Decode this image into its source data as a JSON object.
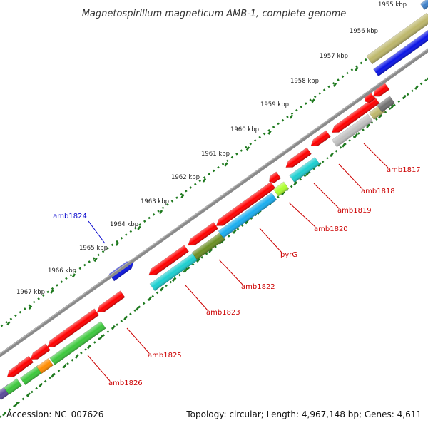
{
  "title": "Magnetospirillum magneticum AMB-1, complete genome",
  "footer": {
    "accession": "Accession: NC_007626",
    "topology": "Topology: circular; Length: 4,967,148 bp; Genes: 4,611"
  },
  "ticks": [
    "1955 kbp",
    "1956 kbp",
    "1957 kbp",
    "1958 kbp",
    "1959 kbp",
    "1960 kbp",
    "1961 kbp",
    "1962 kbp",
    "1963 kbp",
    "1964 kbp",
    "1965 kbp",
    "1966 kbp",
    "1967 kbp"
  ],
  "genes": [
    {
      "name": "amb1817",
      "color": "#cc0000"
    },
    {
      "name": "amb1818",
      "color": "#cc0000"
    },
    {
      "name": "amb1819",
      "color": "#cc0000"
    },
    {
      "name": "amb1820",
      "color": "#cc0000"
    },
    {
      "name": "pyrG",
      "color": "#cc0000"
    },
    {
      "name": "amb1822",
      "color": "#cc0000"
    },
    {
      "name": "amb1823",
      "color": "#cc0000"
    },
    {
      "name": "amb1824",
      "color": "#0000cc"
    },
    {
      "name": "amb1825",
      "color": "#cc0000"
    },
    {
      "name": "amb1826",
      "color": "#cc0000"
    }
  ],
  "colors": {
    "red": "#ff0000",
    "blue": "#0a14e6",
    "cyan": "#1ccfd0",
    "skyblue": "#1aaef0",
    "olive": "#6b8e23",
    "lime": "#adff2f",
    "green": "#3cc83c",
    "orange": "#ff8c00",
    "khaki": "#bdb76b",
    "gray": "#707070",
    "silver": "#c0c0c0",
    "backbone": "#8a8a8a",
    "slate": "#5a4a9a",
    "steel": "#3c7fc8"
  }
}
